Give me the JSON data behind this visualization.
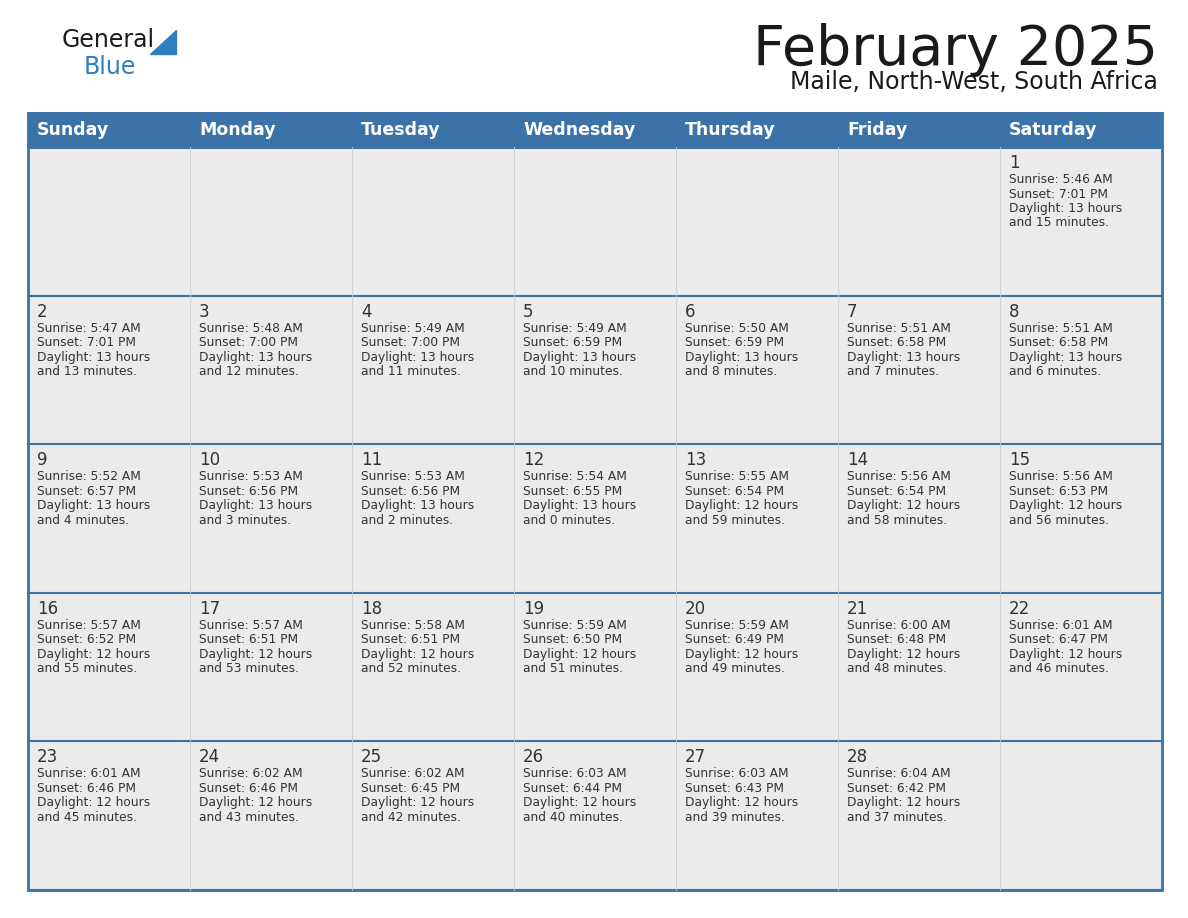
{
  "title": "February 2025",
  "subtitle": "Maile, North-West, South Africa",
  "days_of_week": [
    "Sunday",
    "Monday",
    "Tuesday",
    "Wednesday",
    "Thursday",
    "Friday",
    "Saturday"
  ],
  "header_bg": "#3b72a8",
  "header_text": "#ffffff",
  "cell_bg": "#ebebeb",
  "cell_bg_white": "#ffffff",
  "border_color": "#3b72a8",
  "row_line_color": "#3b72a8",
  "text_color": "#333333",
  "day_num_color": "#333333",
  "logo_general_color": "#1a1a1a",
  "logo_blue_color": "#2d7fc1",
  "logo_triangle_color": "#2d7fc1",
  "calendar_data": [
    [
      null,
      null,
      null,
      null,
      null,
      null,
      {
        "day": "1",
        "sunrise": "5:46 AM",
        "sunset": "7:01 PM",
        "daylight_h": "13 hours",
        "daylight_m": "15 minutes"
      }
    ],
    [
      {
        "day": "2",
        "sunrise": "5:47 AM",
        "sunset": "7:01 PM",
        "daylight_h": "13 hours",
        "daylight_m": "13 minutes"
      },
      {
        "day": "3",
        "sunrise": "5:48 AM",
        "sunset": "7:00 PM",
        "daylight_h": "13 hours",
        "daylight_m": "12 minutes"
      },
      {
        "day": "4",
        "sunrise": "5:49 AM",
        "sunset": "7:00 PM",
        "daylight_h": "13 hours",
        "daylight_m": "11 minutes"
      },
      {
        "day": "5",
        "sunrise": "5:49 AM",
        "sunset": "6:59 PM",
        "daylight_h": "13 hours",
        "daylight_m": "10 minutes"
      },
      {
        "day": "6",
        "sunrise": "5:50 AM",
        "sunset": "6:59 PM",
        "daylight_h": "13 hours",
        "daylight_m": "8 minutes"
      },
      {
        "day": "7",
        "sunrise": "5:51 AM",
        "sunset": "6:58 PM",
        "daylight_h": "13 hours",
        "daylight_m": "7 minutes"
      },
      {
        "day": "8",
        "sunrise": "5:51 AM",
        "sunset": "6:58 PM",
        "daylight_h": "13 hours",
        "daylight_m": "6 minutes"
      }
    ],
    [
      {
        "day": "9",
        "sunrise": "5:52 AM",
        "sunset": "6:57 PM",
        "daylight_h": "13 hours",
        "daylight_m": "4 minutes"
      },
      {
        "day": "10",
        "sunrise": "5:53 AM",
        "sunset": "6:56 PM",
        "daylight_h": "13 hours",
        "daylight_m": "3 minutes"
      },
      {
        "day": "11",
        "sunrise": "5:53 AM",
        "sunset": "6:56 PM",
        "daylight_h": "13 hours",
        "daylight_m": "2 minutes"
      },
      {
        "day": "12",
        "sunrise": "5:54 AM",
        "sunset": "6:55 PM",
        "daylight_h": "13 hours",
        "daylight_m": "0 minutes"
      },
      {
        "day": "13",
        "sunrise": "5:55 AM",
        "sunset": "6:54 PM",
        "daylight_h": "12 hours",
        "daylight_m": "59 minutes"
      },
      {
        "day": "14",
        "sunrise": "5:56 AM",
        "sunset": "6:54 PM",
        "daylight_h": "12 hours",
        "daylight_m": "58 minutes"
      },
      {
        "day": "15",
        "sunrise": "5:56 AM",
        "sunset": "6:53 PM",
        "daylight_h": "12 hours",
        "daylight_m": "56 minutes"
      }
    ],
    [
      {
        "day": "16",
        "sunrise": "5:57 AM",
        "sunset": "6:52 PM",
        "daylight_h": "12 hours",
        "daylight_m": "55 minutes"
      },
      {
        "day": "17",
        "sunrise": "5:57 AM",
        "sunset": "6:51 PM",
        "daylight_h": "12 hours",
        "daylight_m": "53 minutes"
      },
      {
        "day": "18",
        "sunrise": "5:58 AM",
        "sunset": "6:51 PM",
        "daylight_h": "12 hours",
        "daylight_m": "52 minutes"
      },
      {
        "day": "19",
        "sunrise": "5:59 AM",
        "sunset": "6:50 PM",
        "daylight_h": "12 hours",
        "daylight_m": "51 minutes"
      },
      {
        "day": "20",
        "sunrise": "5:59 AM",
        "sunset": "6:49 PM",
        "daylight_h": "12 hours",
        "daylight_m": "49 minutes"
      },
      {
        "day": "21",
        "sunrise": "6:00 AM",
        "sunset": "6:48 PM",
        "daylight_h": "12 hours",
        "daylight_m": "48 minutes"
      },
      {
        "day": "22",
        "sunrise": "6:01 AM",
        "sunset": "6:47 PM",
        "daylight_h": "12 hours",
        "daylight_m": "46 minutes"
      }
    ],
    [
      {
        "day": "23",
        "sunrise": "6:01 AM",
        "sunset": "6:46 PM",
        "daylight_h": "12 hours",
        "daylight_m": "45 minutes"
      },
      {
        "day": "24",
        "sunrise": "6:02 AM",
        "sunset": "6:46 PM",
        "daylight_h": "12 hours",
        "daylight_m": "43 minutes"
      },
      {
        "day": "25",
        "sunrise": "6:02 AM",
        "sunset": "6:45 PM",
        "daylight_h": "12 hours",
        "daylight_m": "42 minutes"
      },
      {
        "day": "26",
        "sunrise": "6:03 AM",
        "sunset": "6:44 PM",
        "daylight_h": "12 hours",
        "daylight_m": "40 minutes"
      },
      {
        "day": "27",
        "sunrise": "6:03 AM",
        "sunset": "6:43 PM",
        "daylight_h": "12 hours",
        "daylight_m": "39 minutes"
      },
      {
        "day": "28",
        "sunrise": "6:04 AM",
        "sunset": "6:42 PM",
        "daylight_h": "12 hours",
        "daylight_m": "37 minutes"
      },
      null
    ]
  ]
}
